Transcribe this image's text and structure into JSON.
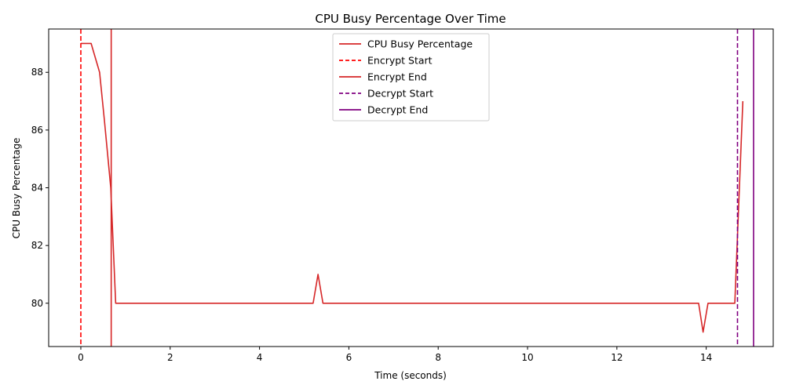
{
  "chart_data": {
    "type": "line",
    "title": "CPU Busy Percentage Over Time",
    "xlabel": "Time (seconds)",
    "ylabel": "CPU Busy Percentage",
    "xlim": [
      -0.72,
      15.5
    ],
    "ylim": [
      78.5,
      89.5
    ],
    "xticks": [
      0,
      2,
      4,
      6,
      8,
      10,
      12,
      14
    ],
    "yticks": [
      80,
      82,
      84,
      86,
      88
    ],
    "grid": false,
    "legend_position": "top-center",
    "series": [
      {
        "name": "CPU Busy Percentage",
        "color": "#d62728",
        "style": "solid",
        "x": [
          0,
          0.23,
          0.42,
          0.53,
          0.67,
          0.78,
          1.0,
          2.0,
          3.0,
          4.0,
          5.0,
          5.2,
          5.31,
          5.42,
          6.0,
          8.0,
          10.0,
          12.0,
          13.83,
          13.93,
          14.04,
          14.3,
          14.64,
          14.82
        ],
        "y": [
          89,
          89,
          88,
          86.3,
          84,
          80,
          80,
          80,
          80,
          80,
          80,
          80,
          81,
          80,
          80,
          80,
          80,
          80,
          80,
          79,
          80,
          80,
          80,
          87
        ]
      }
    ],
    "markers": [
      {
        "name": "Encrypt Start",
        "x": 0.0,
        "color": "#ff0000",
        "style": "dashed"
      },
      {
        "name": "Encrypt End",
        "x": 0.68,
        "color": "#d62728",
        "style": "solid"
      },
      {
        "name": "Decrypt Start",
        "x": 14.7,
        "color": "#800080",
        "style": "dashed"
      },
      {
        "name": "Decrypt End",
        "x": 15.06,
        "color": "#800080",
        "style": "solid"
      }
    ]
  }
}
